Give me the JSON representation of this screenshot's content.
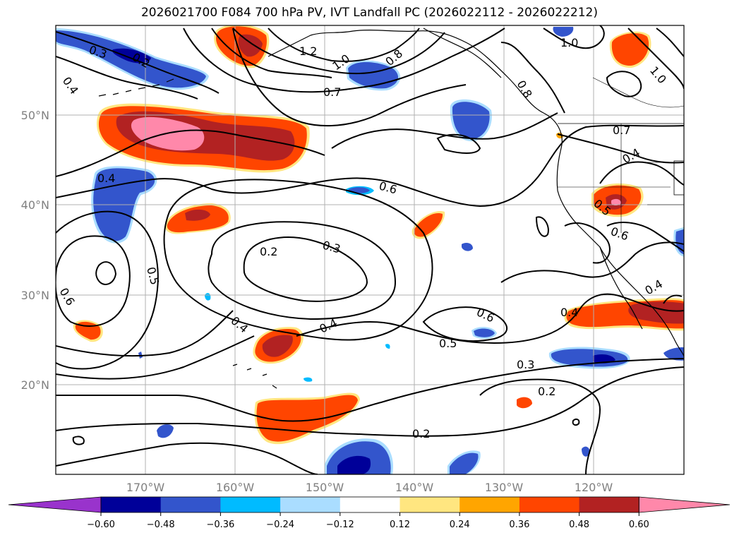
{
  "title": "2026021700 F084 700 hPa PV, IVT Landfall PC (2026022112 - 2026022212)",
  "map": {
    "lat_labels": [
      "50°N",
      "40°N",
      "30°N",
      "20°N"
    ],
    "lon_labels": [
      "170°W",
      "160°W",
      "150°W",
      "140°W",
      "130°W",
      "120°W"
    ],
    "contour_labels": [
      {
        "id": "c1",
        "text": "0.3"
      },
      {
        "id": "c2",
        "text": "0.2"
      },
      {
        "id": "c3",
        "text": "0.4"
      },
      {
        "id": "c4",
        "text": "1.2"
      },
      {
        "id": "c5",
        "text": "1.0"
      },
      {
        "id": "c6",
        "text": "0.8"
      },
      {
        "id": "c7",
        "text": "0.7"
      },
      {
        "id": "c8",
        "text": "0.8"
      },
      {
        "id": "c9",
        "text": "1.0"
      },
      {
        "id": "c10",
        "text": "1.0"
      },
      {
        "id": "c11",
        "text": "0.7"
      },
      {
        "id": "c12",
        "text": "0.4"
      },
      {
        "id": "c13",
        "text": "0.4"
      },
      {
        "id": "c14",
        "text": "0.6"
      },
      {
        "id": "c15",
        "text": "0.5"
      },
      {
        "id": "c16",
        "text": "0.6"
      },
      {
        "id": "c17",
        "text": "0.2"
      },
      {
        "id": "c18",
        "text": "0.3"
      },
      {
        "id": "c19",
        "text": "0.5"
      },
      {
        "id": "c20",
        "text": "0.6"
      },
      {
        "id": "c21",
        "text": "0.4"
      },
      {
        "id": "c22",
        "text": "0.4"
      },
      {
        "id": "c23",
        "text": "0.6"
      },
      {
        "id": "c24",
        "text": "0.5"
      },
      {
        "id": "c25",
        "text": "0.4"
      },
      {
        "id": "c26",
        "text": "0.4"
      },
      {
        "id": "c27",
        "text": "0.3"
      },
      {
        "id": "c28",
        "text": "0.2"
      },
      {
        "id": "c29",
        "text": "0.2"
      }
    ]
  },
  "colorbar": {
    "ticks": [
      "−0.60",
      "−0.48",
      "−0.36",
      "−0.24",
      "−0.12",
      "0.12",
      "0.24",
      "0.36",
      "0.48",
      "0.60"
    ],
    "colors": [
      "#9933cc",
      "#000099",
      "#3355cc",
      "#00bbff",
      "#aaddff",
      "#ffffff",
      "#ffe680",
      "#ffa500",
      "#ff4500",
      "#b22222",
      "#ff88aa"
    ]
  }
}
